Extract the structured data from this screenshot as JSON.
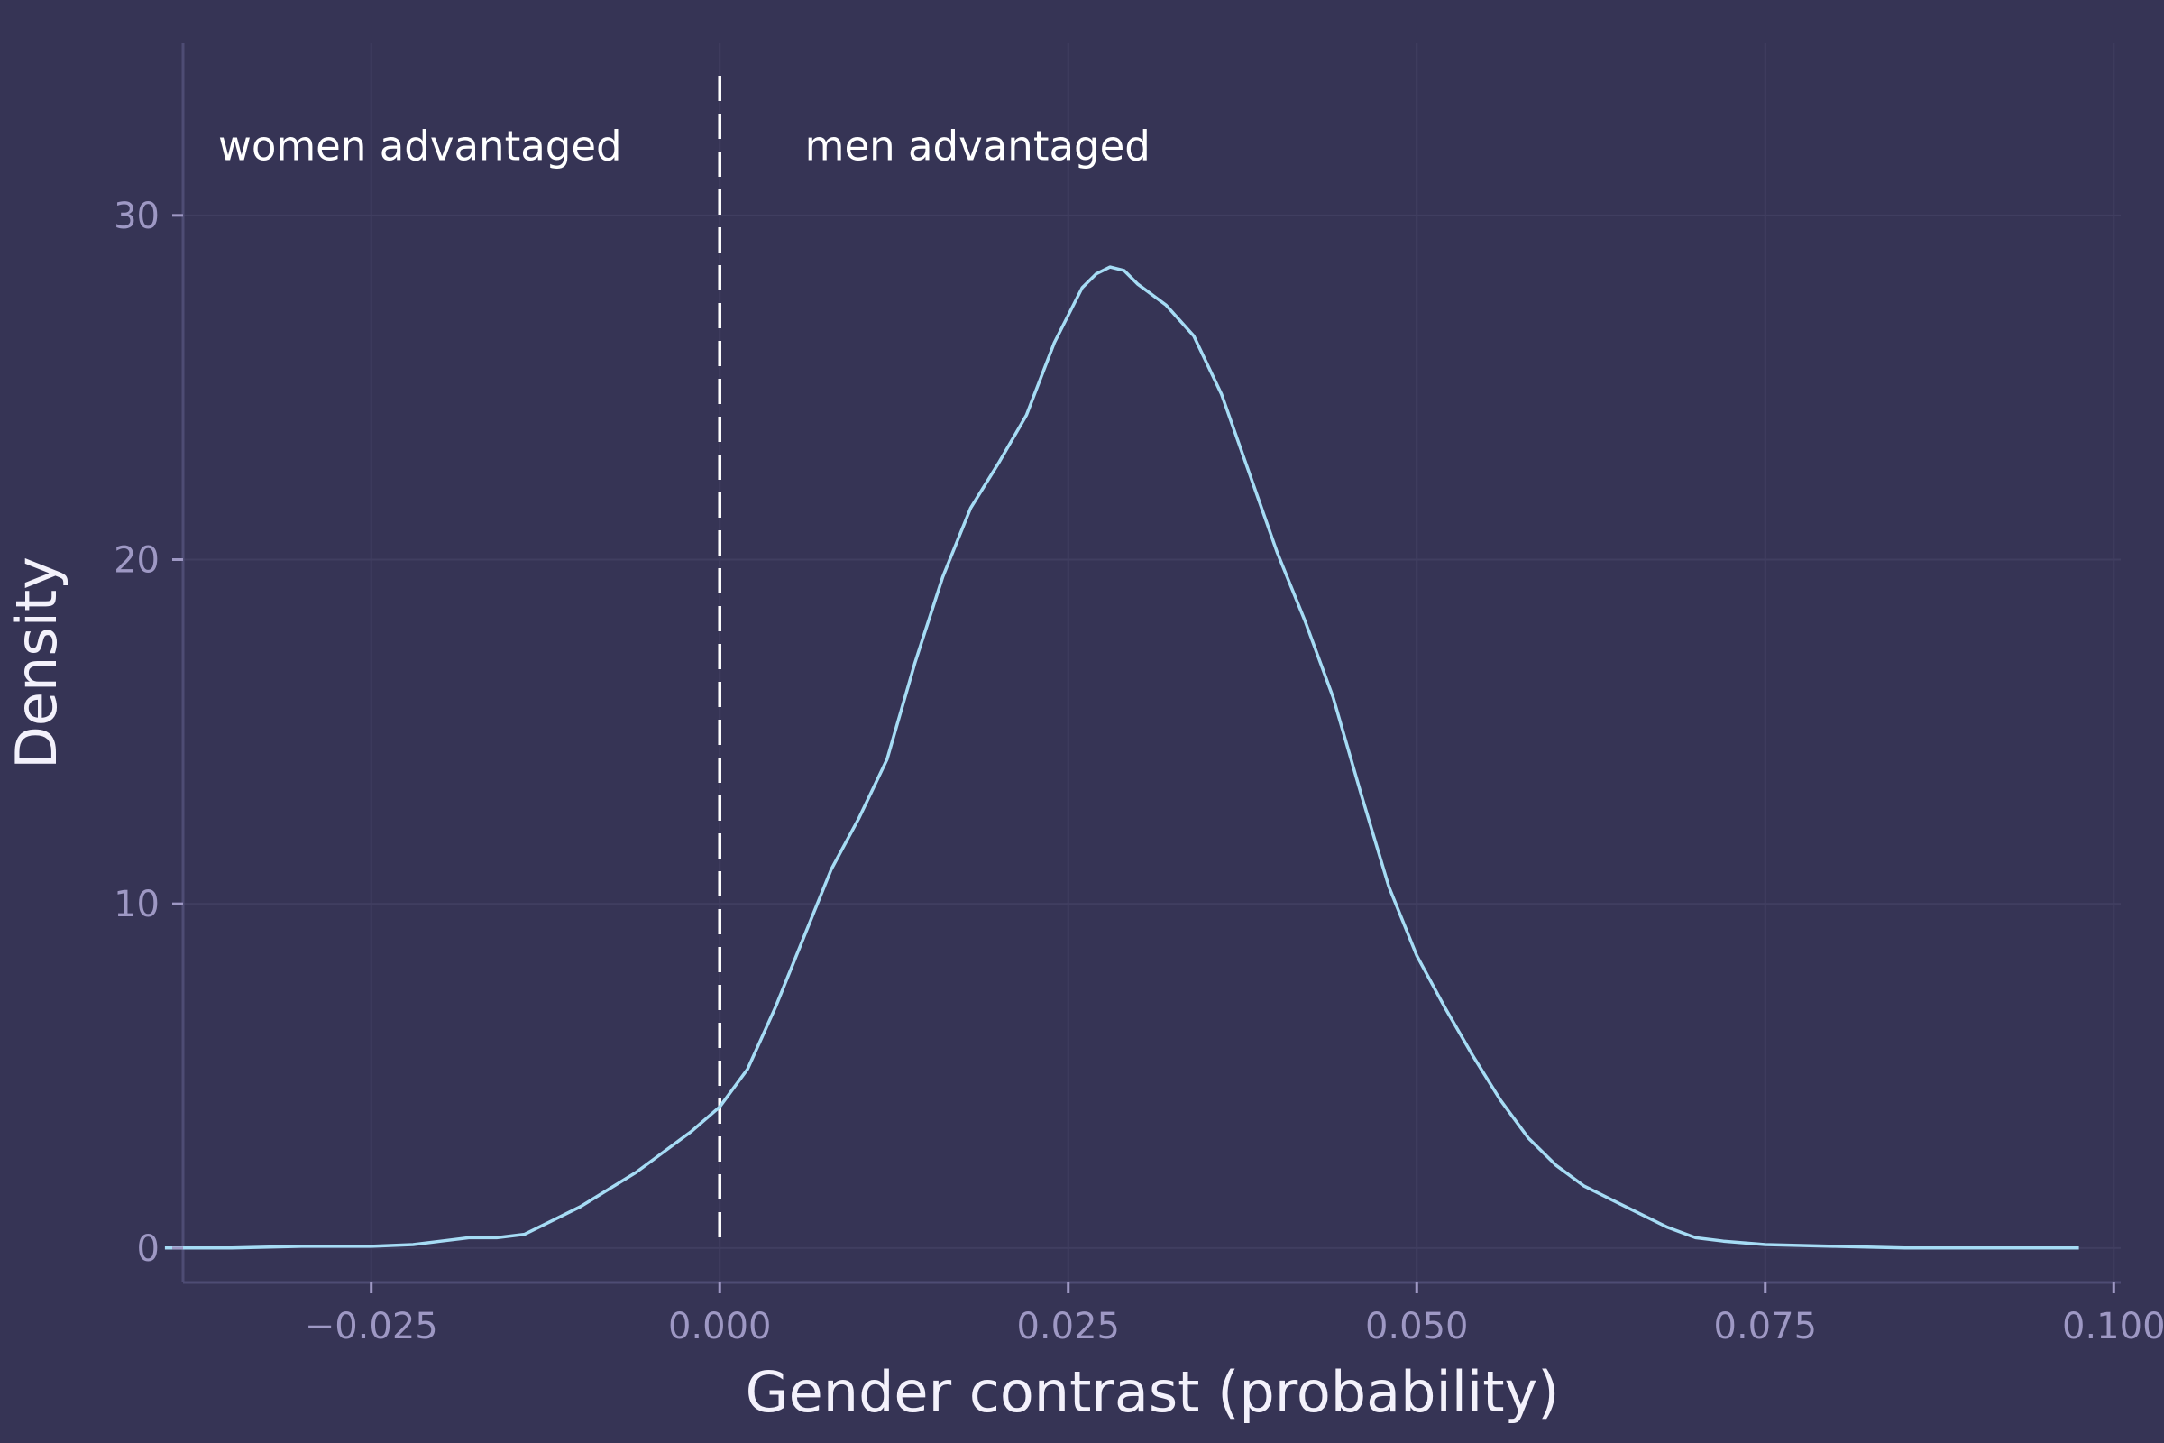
{
  "chart_data": {
    "type": "line",
    "title": "",
    "xlabel": "Gender contrast (probability)",
    "ylabel": "Density",
    "xlim": [
      -0.0385,
      0.1005
    ],
    "ylim": [
      -1.0,
      35.0
    ],
    "xticks": [
      -0.025,
      0.0,
      0.025,
      0.05,
      0.075,
      0.1
    ],
    "xtick_labels": [
      "−0.025",
      "0.000",
      "0.025",
      "0.050",
      "0.075",
      "0.100"
    ],
    "yticks": [
      0,
      10,
      20,
      30
    ],
    "ytick_labels": [
      "0",
      "10",
      "20",
      "30"
    ],
    "grid": true,
    "series": [
      {
        "color": "#a6dcf5",
        "x": [
          -0.0398,
          -0.035,
          -0.03,
          -0.025,
          -0.022,
          -0.02,
          -0.018,
          -0.016,
          -0.014,
          -0.012,
          -0.01,
          -0.008,
          -0.006,
          -0.004,
          -0.002,
          0.0,
          0.002,
          0.004,
          0.006,
          0.008,
          0.01,
          0.012,
          0.014,
          0.016,
          0.018,
          0.02,
          0.022,
          0.024,
          0.026,
          0.027,
          0.028,
          0.029,
          0.03,
          0.032,
          0.034,
          0.036,
          0.038,
          0.04,
          0.042,
          0.044,
          0.046,
          0.048,
          0.05,
          0.052,
          0.054,
          0.056,
          0.058,
          0.06,
          0.062,
          0.064,
          0.066,
          0.068,
          0.07,
          0.072,
          0.075,
          0.08,
          0.085,
          0.09,
          0.0975
        ],
        "y": [
          0.0,
          0.0,
          0.05,
          0.05,
          0.1,
          0.2,
          0.3,
          0.3,
          0.4,
          0.8,
          1.2,
          1.7,
          2.2,
          2.8,
          3.4,
          4.1,
          5.2,
          7.0,
          9.0,
          11.0,
          12.5,
          14.2,
          17.0,
          19.5,
          21.5,
          22.8,
          24.2,
          26.3,
          27.9,
          28.3,
          28.5,
          28.4,
          28.0,
          27.4,
          26.5,
          24.8,
          22.5,
          20.2,
          18.2,
          16.0,
          13.2,
          10.5,
          8.5,
          7.0,
          5.6,
          4.3,
          3.2,
          2.4,
          1.8,
          1.4,
          1.0,
          0.6,
          0.3,
          0.2,
          0.1,
          0.05,
          0.0,
          0.0,
          0.0
        ]
      }
    ],
    "reference_line": {
      "x": 0.0,
      "style": "dashed",
      "color": "#ffffff"
    },
    "annotations": [
      {
        "text": "women advantaged",
        "x": -0.0215,
        "y": 32.0
      },
      {
        "text": "men advantaged",
        "x": 0.0185,
        "y": 32.0
      }
    ]
  }
}
